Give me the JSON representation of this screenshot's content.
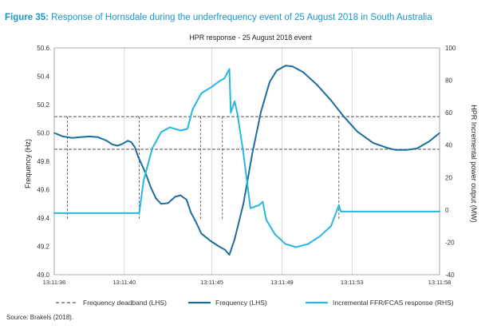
{
  "figure": {
    "number_label": "Figure 35:",
    "caption": "Response of Hornsdale during the underfrequency event of 25 August 2018 in South Australia",
    "source": "Source: Brakels (2018)."
  },
  "chart_data": {
    "type": "line",
    "title": "HPR response - 25 August 2018 event",
    "ylabel_left": "Frequency (Hz)",
    "ylabel_right": "HPR Incremental power output (MW)",
    "xlabel": "",
    "ylim_left": [
      49.0,
      50.6
    ],
    "ylim_right": [
      -40,
      100
    ],
    "xlim_seconds": [
      0,
      22
    ],
    "x_ticks": [
      {
        "s": 0,
        "label": "13:11:36"
      },
      {
        "s": 4,
        "label": "13:11:40"
      },
      {
        "s": 9,
        "label": "13:11:45"
      },
      {
        "s": 13,
        "label": "13:11:49"
      },
      {
        "s": 17,
        "label": "13:11:53"
      },
      {
        "s": 22,
        "label": "13:11:58"
      }
    ],
    "y_ticks_left": [
      {
        "v": 49.0,
        "label": "49.0"
      },
      {
        "v": 49.2,
        "label": "49.2"
      },
      {
        "v": 49.4,
        "label": "49.4"
      },
      {
        "v": 49.6,
        "label": "49.6"
      },
      {
        "v": 49.8,
        "label": "49.8"
      },
      {
        "v": 50.0,
        "label": "50.0"
      },
      {
        "v": 50.2,
        "label": "50.2"
      },
      {
        "v": 50.4,
        "label": "50.4"
      },
      {
        "v": 50.6,
        "label": "50.6"
      }
    ],
    "y_ticks_right": [
      -40,
      -20,
      0,
      20,
      40,
      60,
      80,
      100
    ],
    "grid": "vertical",
    "legend_position": "bottom",
    "deadband": {
      "name": "Frequency deadband (LHS)",
      "color": "#555555",
      "levels_left": [
        50.115,
        49.885
      ],
      "drops_seconds": [
        0.75,
        4.85,
        8.35,
        9.6,
        16.25
      ],
      "drop_to_left": 49.385
    },
    "series": [
      {
        "name": "Frequency (LHS)",
        "axis": "left",
        "color": "#1b6e9c",
        "points": [
          [
            0,
            50.0
          ],
          [
            0.5,
            49.975
          ],
          [
            1.0,
            49.965
          ],
          [
            1.5,
            49.97
          ],
          [
            2.0,
            49.975
          ],
          [
            2.5,
            49.97
          ],
          [
            3.0,
            49.945
          ],
          [
            3.3,
            49.92
          ],
          [
            3.6,
            49.91
          ],
          [
            3.85,
            49.92
          ],
          [
            4.2,
            49.945
          ],
          [
            4.4,
            49.935
          ],
          [
            4.6,
            49.9
          ],
          [
            4.8,
            49.83
          ],
          [
            5.2,
            49.72
          ],
          [
            5.5,
            49.62
          ],
          [
            5.8,
            49.54
          ],
          [
            6.1,
            49.5
          ],
          [
            6.5,
            49.505
          ],
          [
            6.9,
            49.55
          ],
          [
            7.2,
            49.56
          ],
          [
            7.55,
            49.53
          ],
          [
            7.8,
            49.44
          ],
          [
            8.1,
            49.37
          ],
          [
            8.4,
            49.29
          ],
          [
            8.9,
            49.24
          ],
          [
            9.4,
            49.2
          ],
          [
            9.75,
            49.175
          ],
          [
            10.0,
            49.14
          ],
          [
            10.3,
            49.25
          ],
          [
            10.8,
            49.5
          ],
          [
            11.3,
            49.85
          ],
          [
            11.8,
            50.15
          ],
          [
            12.3,
            50.36
          ],
          [
            12.7,
            50.44
          ],
          [
            13.2,
            50.475
          ],
          [
            13.6,
            50.47
          ],
          [
            14.2,
            50.43
          ],
          [
            15.0,
            50.34
          ],
          [
            15.8,
            50.23
          ],
          [
            16.5,
            50.12
          ],
          [
            17.3,
            50.01
          ],
          [
            18.2,
            49.93
          ],
          [
            19.0,
            49.895
          ],
          [
            19.5,
            49.88
          ],
          [
            20.1,
            49.88
          ],
          [
            20.7,
            49.89
          ],
          [
            21.4,
            49.94
          ],
          [
            22.0,
            50.0
          ]
        ]
      },
      {
        "name": "Incremental FFR/FCAS response (RHS)",
        "axis": "right",
        "color": "#27b5e3",
        "points": [
          [
            0,
            -2
          ],
          [
            4.85,
            -2
          ],
          [
            5.1,
            18
          ],
          [
            5.6,
            38
          ],
          [
            6.1,
            48
          ],
          [
            6.6,
            51
          ],
          [
            7.2,
            49
          ],
          [
            7.6,
            50
          ],
          [
            7.9,
            62
          ],
          [
            8.4,
            72
          ],
          [
            9.0,
            76
          ],
          [
            9.5,
            80
          ],
          [
            9.7,
            81
          ],
          [
            10.0,
            87
          ],
          [
            10.08,
            60
          ],
          [
            10.3,
            67
          ],
          [
            10.45,
            60
          ],
          [
            10.8,
            35
          ],
          [
            11.2,
            1
          ],
          [
            11.7,
            3
          ],
          [
            11.9,
            5
          ],
          [
            12.1,
            -6
          ],
          [
            12.6,
            -15
          ],
          [
            13.2,
            -21
          ],
          [
            13.8,
            -23
          ],
          [
            14.5,
            -21
          ],
          [
            15.2,
            -16
          ],
          [
            15.8,
            -10
          ],
          [
            16.25,
            3
          ],
          [
            16.35,
            -1
          ],
          [
            18,
            -1
          ],
          [
            20,
            -1
          ],
          [
            22,
            -1
          ]
        ]
      }
    ]
  }
}
